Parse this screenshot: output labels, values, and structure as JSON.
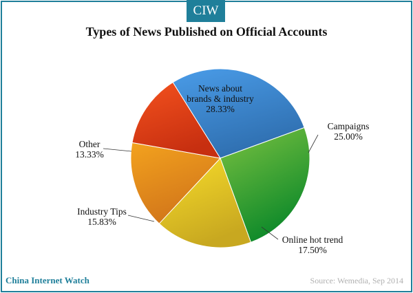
{
  "badge": "CIW",
  "footer": {
    "brand": "China Internet Watch",
    "source": "Source: Wemedia, Sep 2014"
  },
  "chart_data": {
    "type": "pie",
    "title": "Types of News Published on Official Accounts",
    "slices": [
      {
        "label": "News about brands & industry",
        "label_lines": [
          "News about",
          "brands & industry"
        ],
        "value": 28.33,
        "display": "28.33%",
        "color": "#4a9ce8",
        "color_dark": "#2f6fb0"
      },
      {
        "label": "Campaigns",
        "label_lines": [
          "Campaigns"
        ],
        "value": 25.0,
        "display": "25.00%",
        "color": "#7cc241",
        "color_dark": "#0f8a2a"
      },
      {
        "label": "Online hot trend",
        "label_lines": [
          "Online hot trend"
        ],
        "value": 17.5,
        "display": "17.50%",
        "color": "#f7dc2a",
        "color_dark": "#c8a820"
      },
      {
        "label": "Industry Tips",
        "label_lines": [
          "Industry Tips"
        ],
        "value": 15.83,
        "display": "15.83%",
        "color": "#f3a21e",
        "color_dark": "#d2761a"
      },
      {
        "label": "Other",
        "label_lines": [
          "Other"
        ],
        "value": 13.33,
        "display": "13.33%",
        "color": "#f4521e",
        "color_dark": "#c72f10"
      }
    ]
  }
}
